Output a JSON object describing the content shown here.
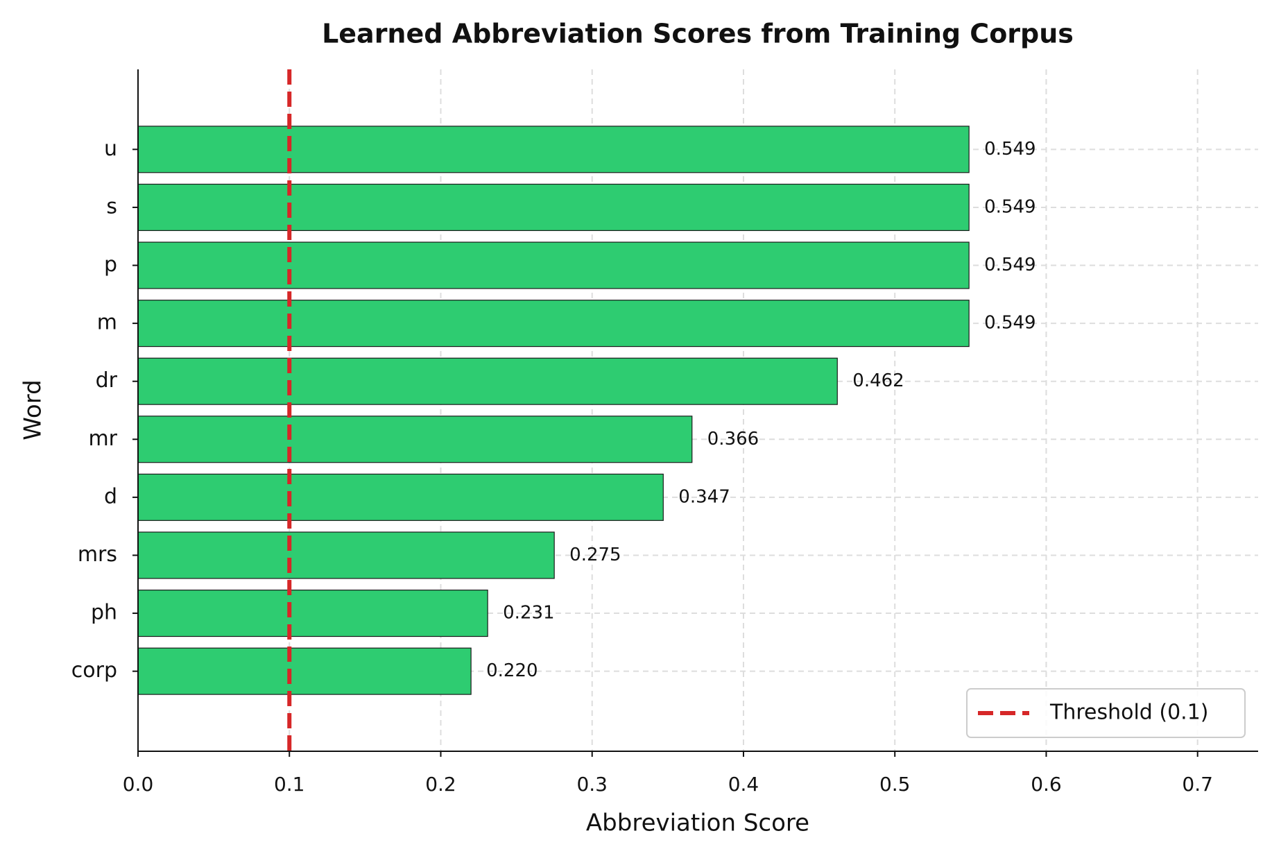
{
  "chart_data": {
    "type": "bar",
    "orientation": "horizontal",
    "title": "Learned Abbreviation Scores from Training Corpus",
    "xlabel": "Abbreviation Score",
    "ylabel": "Word",
    "categories": [
      "u",
      "s",
      "p",
      "m",
      "dr",
      "mr",
      "d",
      "mrs",
      "ph",
      "corp"
    ],
    "values": [
      0.549,
      0.549,
      0.549,
      0.549,
      0.462,
      0.366,
      0.347,
      0.275,
      0.231,
      0.22
    ],
    "value_labels": [
      "0.549",
      "0.549",
      "0.549",
      "0.549",
      "0.462",
      "0.366",
      "0.347",
      "0.275",
      "0.231",
      "0.220"
    ],
    "color": "#2ecc71",
    "edgecolor": "#1a1a1a",
    "xlim": [
      0,
      0.74
    ],
    "xticks": [
      {
        "value": 0,
        "label": "0.0"
      },
      0.1,
      0.2,
      0.3,
      0.4,
      0.5,
      0.6,
      0.7
    ],
    "grid": true,
    "threshold": {
      "value": 0.1,
      "label": "Threshold (0.1)",
      "color": "#d62728"
    },
    "legend": "lower right"
  }
}
